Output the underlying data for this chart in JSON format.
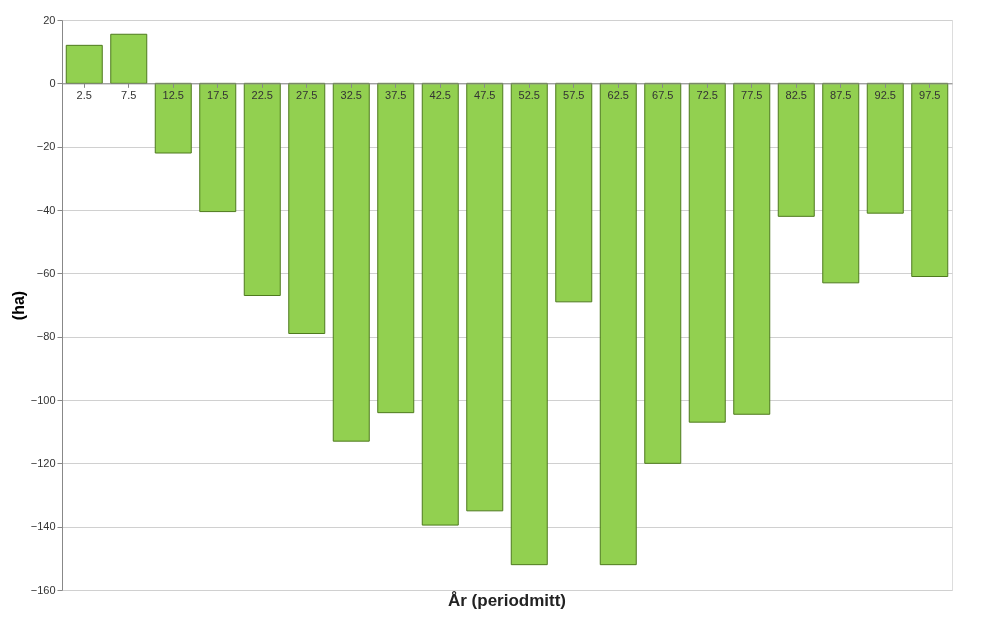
{
  "chart_data": {
    "type": "bar",
    "xlabel": "År (periodmitt)",
    "ylabel": "(ha)",
    "categories": [
      "2.5",
      "7.5",
      "12.5",
      "17.5",
      "22.5",
      "27.5",
      "32.5",
      "37.5",
      "42.5",
      "47.5",
      "52.5",
      "57.5",
      "62.5",
      "67.5",
      "72.5",
      "77.5",
      "82.5",
      "87.5",
      "92.5",
      "97.5"
    ],
    "values": [
      12,
      15.5,
      -22,
      -40.5,
      -67,
      -79,
      -113,
      -104,
      -139.5,
      -135,
      -152,
      -69,
      -152,
      -120,
      -107,
      -104.5,
      -42,
      -63,
      -41,
      -61
    ],
    "color": "#92d050",
    "ylim": [
      -160,
      20
    ],
    "yticks": [
      -160,
      -140,
      -120,
      -100,
      -80,
      -60,
      -40,
      -20,
      0,
      20
    ],
    "grid": "y"
  }
}
